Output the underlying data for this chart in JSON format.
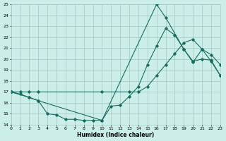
{
  "xlabel": "Humidex (Indice chaleur)",
  "bg_color": "#cceee8",
  "grid_color": "#aacccc",
  "line_color": "#1a6b60",
  "xmin": 0,
  "xmax": 23,
  "ymin": 14,
  "ymax": 25,
  "xticks": [
    0,
    1,
    2,
    3,
    4,
    5,
    6,
    7,
    8,
    9,
    10,
    11,
    12,
    13,
    14,
    15,
    16,
    17,
    18,
    19,
    20,
    21,
    22,
    23
  ],
  "yticks": [
    14,
    15,
    16,
    17,
    18,
    19,
    20,
    21,
    22,
    23,
    24,
    25
  ],
  "line1_x": [
    0,
    1,
    2,
    3,
    4,
    5,
    6,
    7,
    8,
    9,
    10,
    11,
    12,
    13,
    14,
    15,
    16,
    17,
    18,
    19,
    20,
    21,
    22,
    23
  ],
  "line1_y": [
    17.0,
    16.8,
    16.5,
    16.2,
    15.0,
    14.9,
    14.5,
    14.5,
    14.4,
    14.4,
    14.4,
    15.7,
    15.8,
    16.6,
    17.5,
    19.5,
    21.2,
    22.8,
    22.2,
    20.9,
    19.7,
    20.9,
    19.8,
    18.5
  ],
  "line2_x": [
    0,
    1,
    2,
    3,
    10,
    13,
    14,
    15,
    16,
    17,
    18,
    19,
    20,
    21,
    22,
    23
  ],
  "line2_y": [
    17.0,
    17.0,
    17.0,
    17.0,
    17.0,
    17.0,
    17.0,
    17.5,
    18.5,
    19.5,
    20.5,
    21.5,
    21.8,
    20.9,
    20.4,
    19.5
  ],
  "line3_x": [
    0,
    2,
    3,
    10,
    16,
    17,
    19,
    20,
    21,
    22,
    23
  ],
  "line3_y": [
    17.0,
    16.5,
    16.2,
    14.4,
    25.0,
    23.8,
    20.9,
    19.8,
    20.0,
    19.9,
    18.5
  ]
}
